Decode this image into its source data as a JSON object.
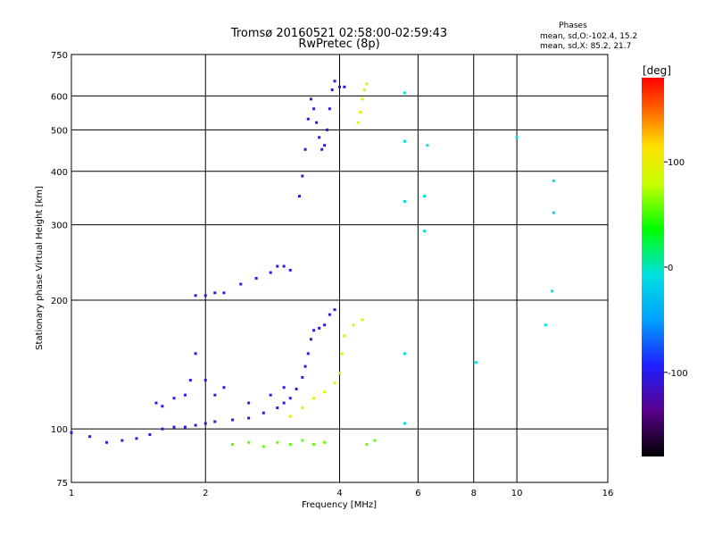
{
  "chart_data": {
    "type": "scatter",
    "title": "Tromsø 20160521 02:58:00-02:59:43",
    "subtitle": "RwPretec (8p)",
    "phase_info": {
      "heading": "Phases",
      "line_o": "mean, sd,O:-102.4, 15.2",
      "line_x": "mean, sd,X:  85.2, 21.7"
    },
    "xlabel": "Frequency [MHz]",
    "ylabel": "Stationary phase Virtual Height [km]",
    "x_scale": "log2",
    "y_scale": "log",
    "xlim": [
      1,
      16
    ],
    "ylim": [
      75,
      750
    ],
    "x_ticks": [
      1,
      2,
      4,
      6,
      8,
      10,
      16
    ],
    "x_tick_labels": [
      "1",
      "2",
      "4",
      "6",
      "8",
      "10",
      "16"
    ],
    "y_ticks": [
      75,
      100,
      200,
      300,
      400,
      500,
      600,
      750
    ],
    "y_tick_labels": [
      "75",
      "100",
      "200",
      "300",
      "400",
      "500",
      "600",
      "750"
    ],
    "grid": true,
    "colorbar": {
      "label": "[deg]",
      "range": [
        -180,
        180
      ],
      "ticks": [
        100,
        0,
        -100
      ],
      "tick_labels": [
        "100",
        "0",
        "-100"
      ]
    },
    "traces": [
      {
        "kind": "O-mode E/F1 trace",
        "phase": -110,
        "points": [
          [
            1.0,
            98
          ],
          [
            1.1,
            96
          ],
          [
            1.2,
            93
          ],
          [
            1.3,
            94
          ],
          [
            1.4,
            95
          ],
          [
            1.5,
            97
          ],
          [
            1.6,
            100
          ],
          [
            1.7,
            101
          ],
          [
            1.8,
            101
          ],
          [
            1.9,
            102
          ],
          [
            2.0,
            103
          ],
          [
            2.1,
            104
          ],
          [
            2.3,
            105
          ],
          [
            2.5,
            106
          ],
          [
            2.7,
            109
          ],
          [
            2.9,
            112
          ],
          [
            3.0,
            115
          ],
          [
            3.1,
            118
          ],
          [
            3.2,
            124
          ],
          [
            3.3,
            132
          ],
          [
            3.35,
            140
          ],
          [
            3.4,
            150
          ],
          [
            3.45,
            162
          ],
          [
            3.5,
            170
          ],
          [
            3.6,
            172
          ],
          [
            3.7,
            175
          ],
          [
            3.8,
            185
          ],
          [
            3.9,
            190
          ]
        ]
      },
      {
        "kind": "O-mode F2 trace",
        "phase": -110,
        "points": [
          [
            1.9,
            205
          ],
          [
            2.0,
            205
          ],
          [
            2.1,
            208
          ],
          [
            2.2,
            208
          ],
          [
            2.4,
            218
          ],
          [
            2.6,
            225
          ],
          [
            2.8,
            232
          ],
          [
            2.9,
            240
          ],
          [
            3.0,
            240
          ],
          [
            3.1,
            235
          ]
        ]
      },
      {
        "kind": "O-mode secondary trace",
        "phase": -105,
        "points": [
          [
            1.55,
            115
          ],
          [
            1.6,
            113
          ],
          [
            1.7,
            118
          ],
          [
            1.8,
            120
          ],
          [
            1.85,
            130
          ],
          [
            1.9,
            150
          ],
          [
            2.0,
            130
          ],
          [
            2.1,
            120
          ],
          [
            2.2,
            125
          ],
          [
            2.5,
            115
          ],
          [
            2.8,
            120
          ],
          [
            3.0,
            125
          ]
        ]
      },
      {
        "kind": "O-mode multiple echo",
        "phase": -110,
        "points": [
          [
            3.25,
            350
          ],
          [
            3.3,
            390
          ],
          [
            3.35,
            450
          ],
          [
            3.4,
            530
          ],
          [
            3.45,
            590
          ],
          [
            3.5,
            560
          ],
          [
            3.55,
            520
          ],
          [
            3.6,
            480
          ],
          [
            3.65,
            450
          ],
          [
            3.7,
            460
          ],
          [
            3.75,
            500
          ],
          [
            3.8,
            560
          ],
          [
            3.85,
            620
          ],
          [
            3.9,
            650
          ],
          [
            4.0,
            630
          ],
          [
            4.1,
            630
          ]
        ]
      },
      {
        "kind": "X-mode trace",
        "phase": 80,
        "points": [
          [
            3.1,
            107
          ],
          [
            3.3,
            112
          ],
          [
            3.5,
            118
          ],
          [
            3.7,
            122
          ],
          [
            3.9,
            128
          ],
          [
            4.0,
            135
          ],
          [
            4.05,
            150
          ],
          [
            4.1,
            165
          ],
          [
            4.3,
            175
          ],
          [
            4.5,
            180
          ]
        ]
      },
      {
        "kind": "X-mode upper trace",
        "phase": 75,
        "points": [
          [
            4.4,
            520
          ],
          [
            4.45,
            550
          ],
          [
            4.5,
            590
          ],
          [
            4.55,
            620
          ],
          [
            4.6,
            640
          ]
        ]
      },
      {
        "kind": "low-height mixed echoes",
        "phase": 40,
        "points": [
          [
            2.3,
            92
          ],
          [
            2.5,
            93
          ],
          [
            2.7,
            91
          ],
          [
            2.9,
            93
          ],
          [
            3.1,
            92
          ],
          [
            3.3,
            94
          ],
          [
            3.5,
            92
          ],
          [
            3.7,
            93
          ],
          [
            4.6,
            92
          ],
          [
            4.8,
            94
          ]
        ]
      },
      {
        "kind": "scattered high-frequency echoes",
        "phase": -20,
        "points": [
          [
            5.6,
            610
          ],
          [
            5.6,
            470
          ],
          [
            5.6,
            340
          ],
          [
            5.6,
            150
          ],
          [
            5.6,
            103
          ],
          [
            6.2,
            350
          ],
          [
            6.2,
            290
          ],
          [
            6.3,
            460
          ],
          [
            8.1,
            143
          ],
          [
            10.0,
            480
          ],
          [
            12.1,
            380
          ],
          [
            12.1,
            320
          ],
          [
            12.0,
            210
          ],
          [
            11.6,
            175
          ]
        ]
      }
    ]
  }
}
